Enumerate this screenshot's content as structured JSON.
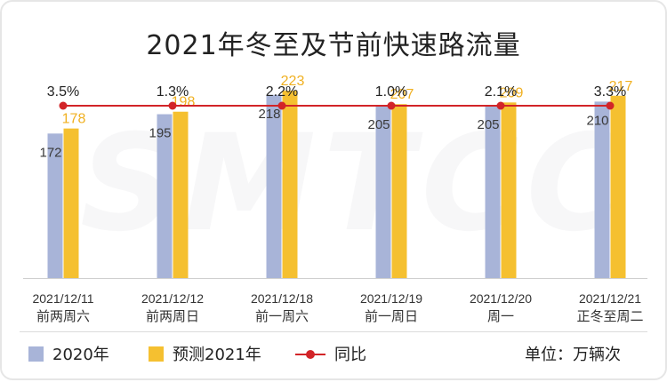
{
  "chart_data": {
    "type": "bar",
    "title": "2021年冬至及节前快速路流量",
    "categories": [
      [
        "2021/12/11",
        "前两周六"
      ],
      [
        "2021/12/12",
        "前两周日"
      ],
      [
        "2021/12/18",
        "前一周六"
      ],
      [
        "2021/12/19",
        "前一周日"
      ],
      [
        "2021/12/20",
        "周一"
      ],
      [
        "2021/12/21",
        "正冬至周二"
      ]
    ],
    "series": [
      {
        "name": "2020年",
        "type": "bar",
        "color": "#a8b4d8",
        "values": [
          172,
          195,
          218,
          205,
          205,
          210
        ]
      },
      {
        "name": "预测2021年",
        "type": "bar",
        "color": "#f5c030",
        "values": [
          178,
          198,
          223,
          207,
          209,
          217
        ]
      },
      {
        "name": "同比",
        "type": "line",
        "color": "#d22428",
        "values": [
          "3.5%",
          "1.3%",
          "2.2%",
          "1.0%",
          "2.1%",
          "3.3%"
        ]
      }
    ],
    "ylim": [
      0,
      240
    ],
    "unit": "单位：万辆次",
    "watermark": "SMTCC"
  }
}
